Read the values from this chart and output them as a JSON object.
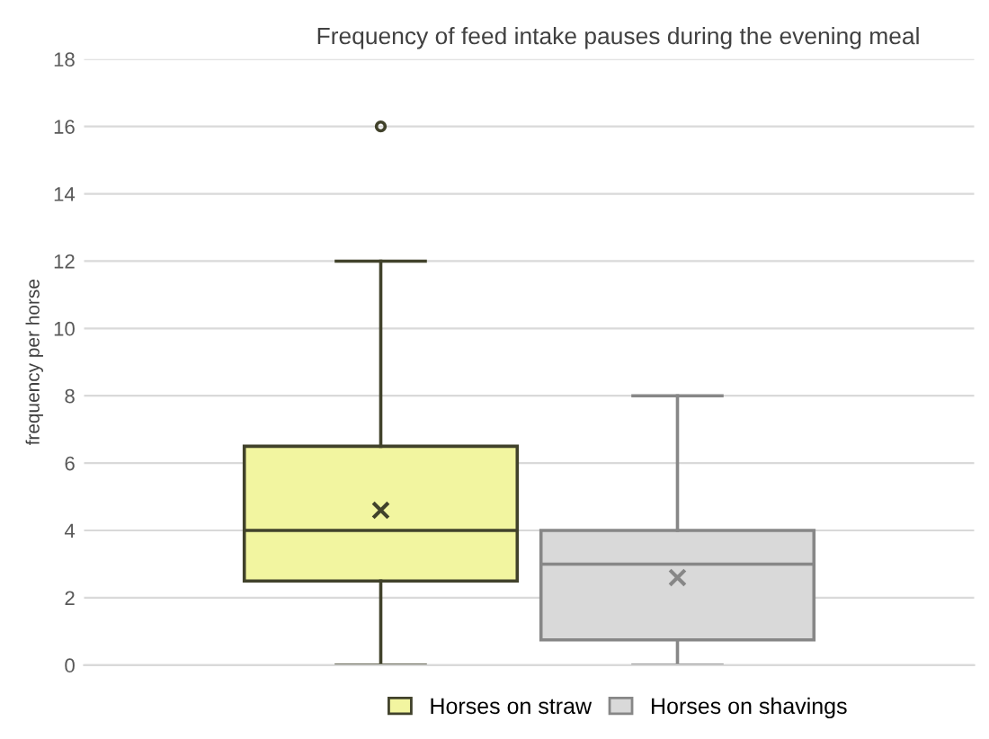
{
  "chart_data": {
    "type": "box",
    "title": "Frequency of feed intake pauses during the evening meal",
    "ylabel": "frequency per horse",
    "categories": [
      null
    ],
    "series": [
      {
        "name": "Horses on straw",
        "color": "#f2f5a0",
        "boxes": [
          {
            "low": 0,
            "q1": 2.5,
            "median": 4,
            "q3": 6.5,
            "high": 12,
            "mean": 4.6,
            "outliers": [
              16
            ]
          }
        ]
      },
      {
        "name": "Horses on shavings",
        "color": "#d9d9d9",
        "boxes": [
          {
            "low": 0,
            "q1": 0.75,
            "median": 3,
            "q3": 4,
            "high": 8,
            "mean": 2.6
          }
        ]
      }
    ],
    "ylim": [
      0,
      18
    ],
    "yticks": [
      0,
      2,
      4,
      6,
      8,
      10,
      12,
      14,
      16,
      18
    ],
    "grid": "y",
    "legend": "bottom"
  }
}
